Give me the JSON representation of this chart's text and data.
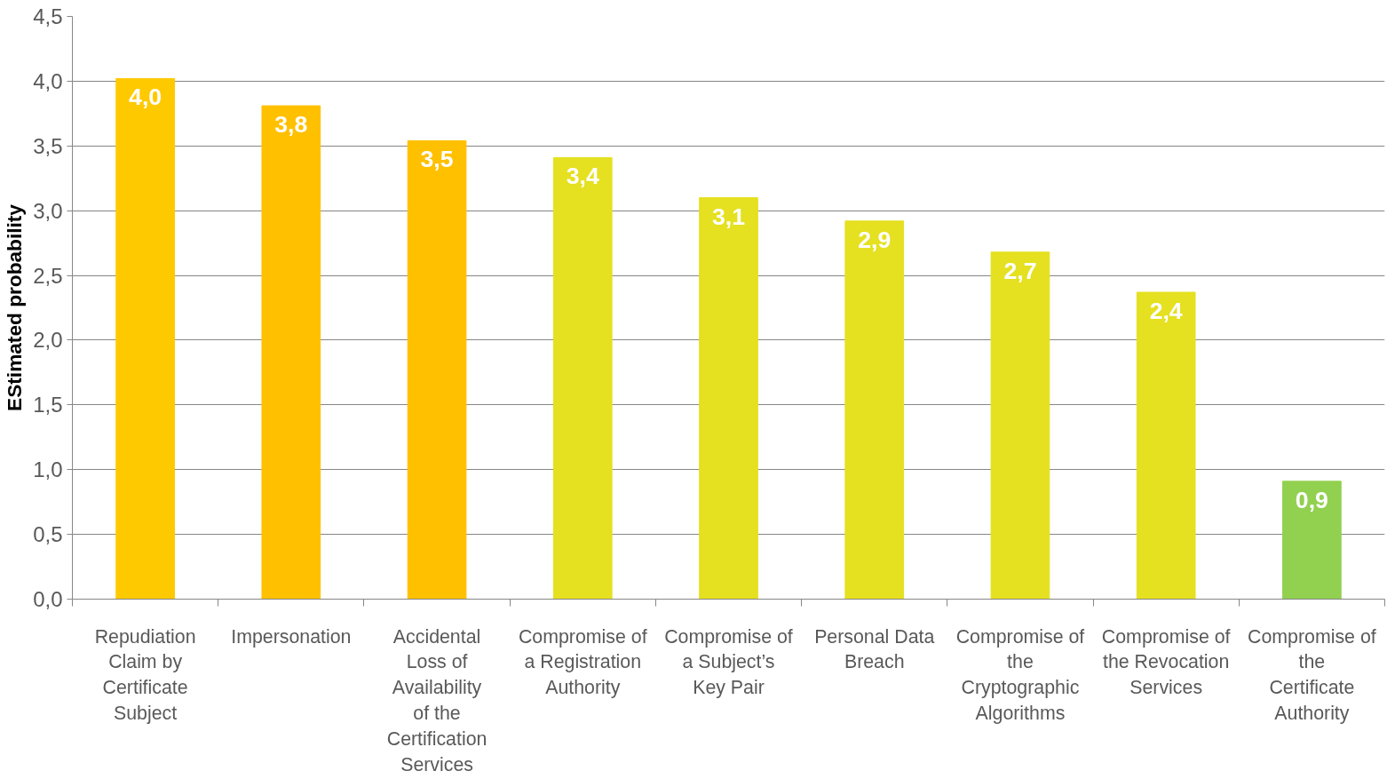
{
  "chart_data": {
    "type": "bar",
    "ylabel": "EStimated probability",
    "categories": [
      "Repudiation Claim by Certificate Subject",
      "Impersonation",
      "Accidental Loss of Availability of the Certification Services",
      "Compromise of a Registration Authority",
      "Compromise of a Subject’s Key Pair",
      "Personal Data Breach",
      "Compromise of the Cryptographic Algorithms",
      "Compromise of the Revocation Services",
      "Compromise of the Certificate Authority"
    ],
    "values": [
      4.02,
      3.81,
      3.54,
      3.41,
      3.1,
      2.92,
      2.68,
      2.37,
      0.91
    ],
    "value_labels": [
      "4,0",
      "3,8",
      "3,5",
      "3,4",
      "3,1",
      "2,9",
      "2,7",
      "2,4",
      "0,9"
    ],
    "colors": [
      "#ffc900",
      "#ffc000",
      "#ffc000",
      "#e5e020",
      "#e5e020",
      "#e5e020",
      "#e5e020",
      "#e5e020",
      "#92d050"
    ],
    "ylim": [
      0,
      4.5
    ],
    "yticks": [
      {
        "value": 0,
        "label": "0,0"
      },
      {
        "value": 0.5,
        "label": "0,5"
      },
      {
        "value": 1,
        "label": "1,0"
      },
      {
        "value": 1.5,
        "label": "1,5"
      },
      {
        "value": 2,
        "label": "2,0"
      },
      {
        "value": 2.5,
        "label": "2,5"
      },
      {
        "value": 3,
        "label": "3,0"
      },
      {
        "value": 3.5,
        "label": "3,5"
      },
      {
        "value": 4,
        "label": "4,0"
      },
      {
        "value": 4.5,
        "label": "4,5"
      }
    ],
    "grid": "y"
  }
}
